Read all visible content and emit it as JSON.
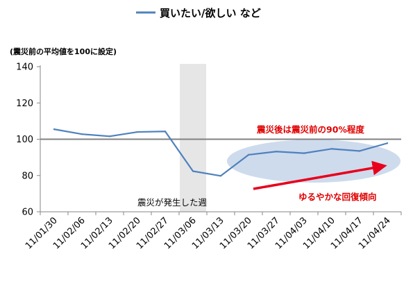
{
  "chart_data": {
    "type": "line",
    "x": [
      "11/01/30",
      "11/02/06",
      "11/02/13",
      "11/02/20",
      "11/02/27",
      "11/03/06",
      "11/03/13",
      "11/03/20",
      "11/03/27",
      "11/04/03",
      "11/04/10",
      "11/04/17",
      "11/04/24"
    ],
    "series": [
      {
        "name": "買いたい/欲しい など",
        "values": [
          105.5,
          102.8,
          101.6,
          104.0,
          104.3,
          82.4,
          79.8,
          91.4,
          93.2,
          92.3,
          94.7,
          93.5,
          97.8
        ]
      }
    ],
    "unit_note": "(震災前の平均値を100に設定)",
    "ylim": [
      60,
      140
    ],
    "yticks": [
      60,
      80,
      100,
      120,
      140
    ],
    "reference_line": 100,
    "shaded_period": "11/03/06",
    "annotations": {
      "earthquake": "震災が発生した週",
      "level": "震災後は震災前の90%程度",
      "trend": "ゆるやかな回復傾向"
    },
    "colors": {
      "series": "#4f81bd",
      "reference": "#808080",
      "shade": "#e6e6e6",
      "ellipse": "#c5d5ea",
      "arrow": "#e8001c",
      "annotation": "#e00000"
    },
    "legend_position": "top",
    "grid": false
  }
}
